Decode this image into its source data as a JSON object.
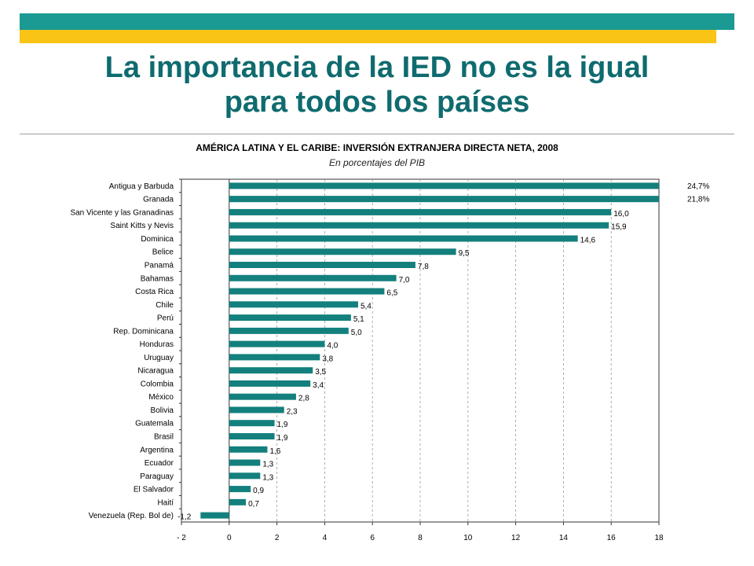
{
  "slide": {
    "title_line1": "La importancia de la IED no es la igual",
    "title_line2": "para todos los países"
  },
  "colors": {
    "band_teal": "#1a9a92",
    "band_gold": "#f9c416",
    "title": "#0f6b6f",
    "bar": "#13807d"
  },
  "chart_data": {
    "type": "bar",
    "orientation": "horizontal",
    "title": "AMÉRICA LATINA Y EL CARIBE: INVERSIÓN EXTRANJERA DIRECTA NETA, 2008",
    "subtitle": "En porcentajes del PIB",
    "xlim": [
      -2,
      18
    ],
    "xticks": [
      -2,
      0,
      2,
      4,
      6,
      8,
      10,
      12,
      14,
      16,
      18
    ],
    "xtick_labels": [
      "- 2",
      "0",
      "2",
      "4",
      "6",
      "8",
      "10",
      "12",
      "14",
      "16",
      "18"
    ],
    "grid": "vertical dashed",
    "categories": [
      "Antigua y Barbuda",
      "Granada",
      "San Vicente y las Granadinas",
      "Saint Kitts y Nevis",
      "Dominica",
      "Belice",
      "Panamá",
      "Bahamas",
      "Costa Rica",
      "Chile",
      "Perú",
      "Rep. Dominicana",
      "Honduras",
      "Uruguay",
      "Nicaragua",
      "Colombia",
      "México",
      "Bolivia",
      "Guatemala",
      "Brasil",
      "Argentina",
      "Ecuador",
      "Paraguay",
      "El Salvador",
      "Haití",
      "Venezuela (Rep. Bol de)"
    ],
    "values": [
      24.7,
      21.8,
      16.0,
      15.9,
      14.6,
      9.5,
      7.8,
      7.0,
      6.5,
      5.4,
      5.1,
      5.0,
      4.0,
      3.8,
      3.5,
      3.4,
      2.8,
      2.3,
      1.9,
      1.9,
      1.6,
      1.3,
      1.3,
      0.9,
      0.7,
      -1.2
    ],
    "value_labels": [
      "24,7%",
      "21,8%",
      "16,0",
      "15,9",
      "14,6",
      "9,5",
      "7,8",
      "7,0",
      "6,5",
      "5,4",
      "5,1",
      "5,0",
      "4,0",
      "3,8",
      "3,5",
      "3,4",
      "2,8",
      "2,3",
      "1,9",
      "1,9",
      "1,6",
      "1,3",
      "1,3",
      "0,9",
      "0,7",
      "-1,2"
    ],
    "truncated_bars": [
      0,
      1
    ]
  }
}
